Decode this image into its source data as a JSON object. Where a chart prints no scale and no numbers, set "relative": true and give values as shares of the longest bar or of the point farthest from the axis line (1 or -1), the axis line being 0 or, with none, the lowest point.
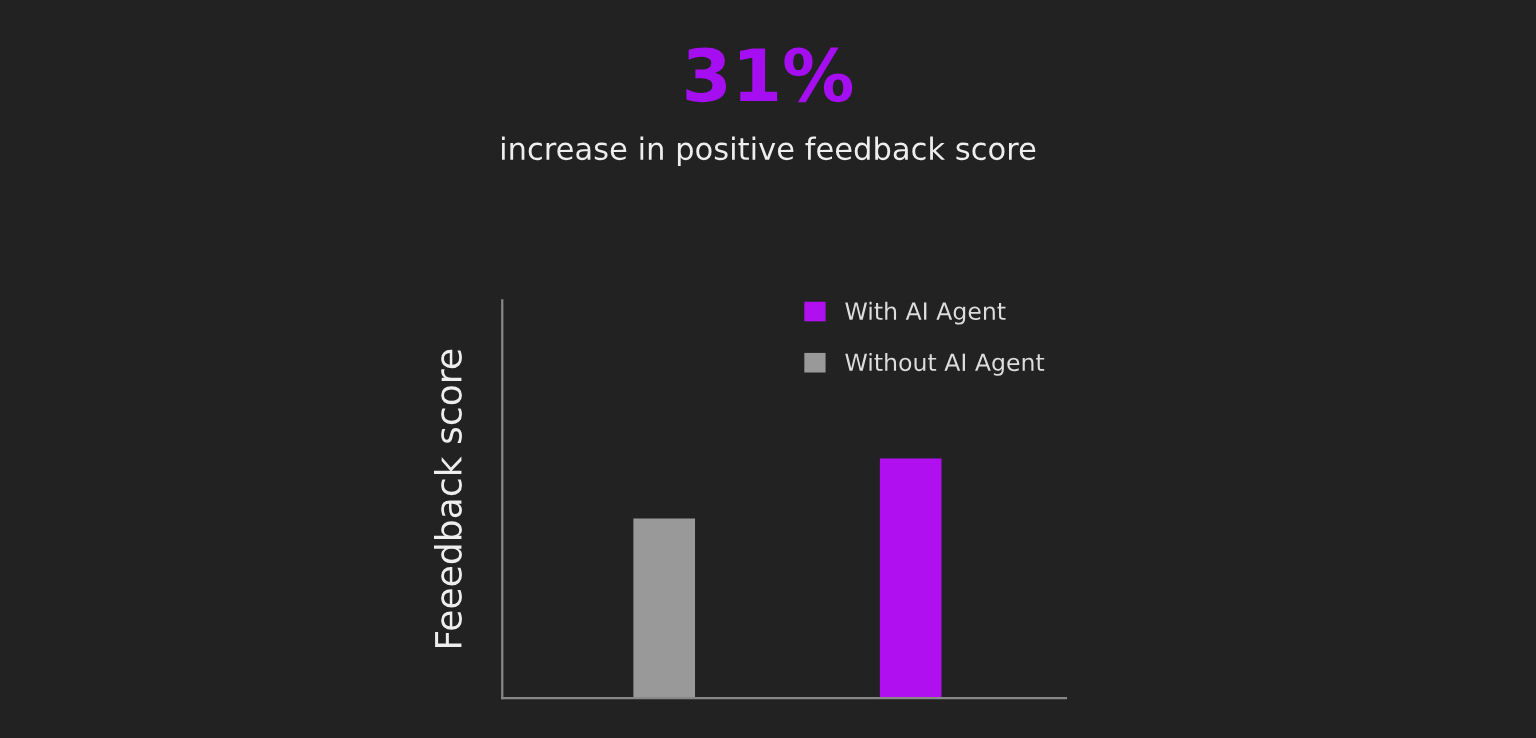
{
  "chart_data": {
    "type": "bar",
    "title": "31%",
    "subtitle": "increase in positive feedback score",
    "ylabel": "Feeedback score",
    "relative": true,
    "stacked": true,
    "categories": [
      null,
      null
    ],
    "series": [
      {
        "name": "Without AI Agent",
        "color": "#999999",
        "values": [
          0.75,
          null
        ]
      },
      {
        "name": "With AI Agent",
        "color": "#b010f0",
        "values": [
          null,
          1
        ]
      }
    ],
    "legend": "top right",
    "grid": false
  }
}
